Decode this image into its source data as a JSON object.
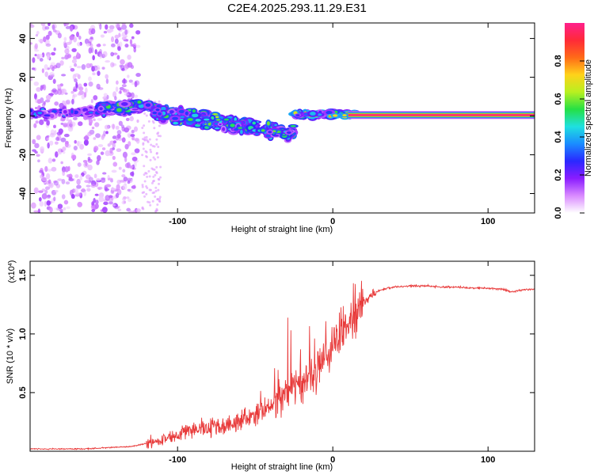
{
  "page_title": "C2E4.2025.293.11.29.E31",
  "colors": {
    "snr_line": "#e83a3a",
    "frame": "#000000",
    "background": "#ffffff",
    "colorbar": [
      "#ffffff",
      "#d98aff",
      "#8a1cff",
      "#2a28ff",
      "#1a8cff",
      "#1fe0e0",
      "#25e045",
      "#b8f020",
      "#ffd21a",
      "#ff6a18",
      "#ff2a38",
      "#ff1f8c"
    ]
  },
  "chart_data": [
    {
      "name": "spectrogram",
      "type": "heatmap",
      "title": "C2E4.2025.293.11.29.E31",
      "xlabel": "Height of straight line (km)",
      "ylabel": "Frequency (Hz)",
      "xlim": [
        -195,
        130
      ],
      "ylim": [
        -50,
        48
      ],
      "xticks": [
        -100,
        0,
        100
      ],
      "yticks": [
        -40,
        -20,
        0,
        20,
        40
      ],
      "colorbar": {
        "label": "Normalized spectral amplitude",
        "range": [
          0,
          1
        ],
        "ticks": [
          0.0,
          0.2,
          0.4,
          0.6,
          0.8
        ]
      },
      "features": [
        {
          "kind": "noise-scatter",
          "x_range": [
            -195,
            -125
          ],
          "freq_range": [
            -50,
            48
          ],
          "amplitude": 0.15
        },
        {
          "kind": "cluster",
          "x_range": [
            -195,
            -125
          ],
          "freq_center": [
            1,
            3
          ],
          "freq_spread": 2.5,
          "amplitude": 0.35
        },
        {
          "kind": "cluster",
          "x_range": [
            -150,
            -115
          ],
          "freq_center": [
            5,
            5
          ],
          "freq_spread": 3,
          "amplitude": 0.5
        },
        {
          "kind": "drifting-band",
          "x_range": [
            -115,
            -25
          ],
          "freq_center": [
            2,
            -9
          ],
          "freq_spread": 5,
          "amplitude": 0.55
        },
        {
          "kind": "cluster",
          "x_range": [
            -25,
            15
          ],
          "freq_center": [
            1,
            1
          ],
          "freq_spread": 1.8,
          "amplitude": 0.7
        },
        {
          "kind": "tone",
          "x_range": [
            10,
            130
          ],
          "freq": 0.5,
          "amplitude": 1.0
        }
      ]
    },
    {
      "name": "snr",
      "type": "line",
      "xlabel": "Height of straight line (km)",
      "ylabel": "SNR (10 * v/v)",
      "multiplier": "(x10^4)",
      "xlim": [
        -195,
        130
      ],
      "ylim": [
        0,
        1.62
      ],
      "xticks": [
        -100,
        0,
        100
      ],
      "yticks": [
        0.5,
        1.0,
        1.5
      ],
      "series": [
        {
          "name": "SNR envelope",
          "x": [
            -195,
            -160,
            -130,
            -115,
            -100,
            -90,
            -80,
            -70,
            -60,
            -50,
            -45,
            -40,
            -35,
            -30,
            -25,
            -20,
            -15,
            -10,
            -5,
            0,
            5,
            10,
            15,
            18,
            22,
            25,
            30,
            35,
            40,
            50,
            60,
            70,
            80,
            90,
            100,
            110,
            115,
            120,
            125,
            130
          ],
          "y": [
            0.02,
            0.02,
            0.04,
            0.08,
            0.14,
            0.18,
            0.2,
            0.22,
            0.26,
            0.3,
            0.35,
            0.4,
            0.45,
            0.5,
            0.55,
            0.58,
            0.6,
            0.68,
            0.8,
            0.9,
            1.0,
            1.08,
            1.15,
            1.25,
            1.3,
            1.34,
            1.37,
            1.39,
            1.4,
            1.41,
            1.41,
            1.4,
            1.4,
            1.39,
            1.39,
            1.38,
            1.36,
            1.37,
            1.38,
            1.38
          ]
        }
      ]
    }
  ]
}
